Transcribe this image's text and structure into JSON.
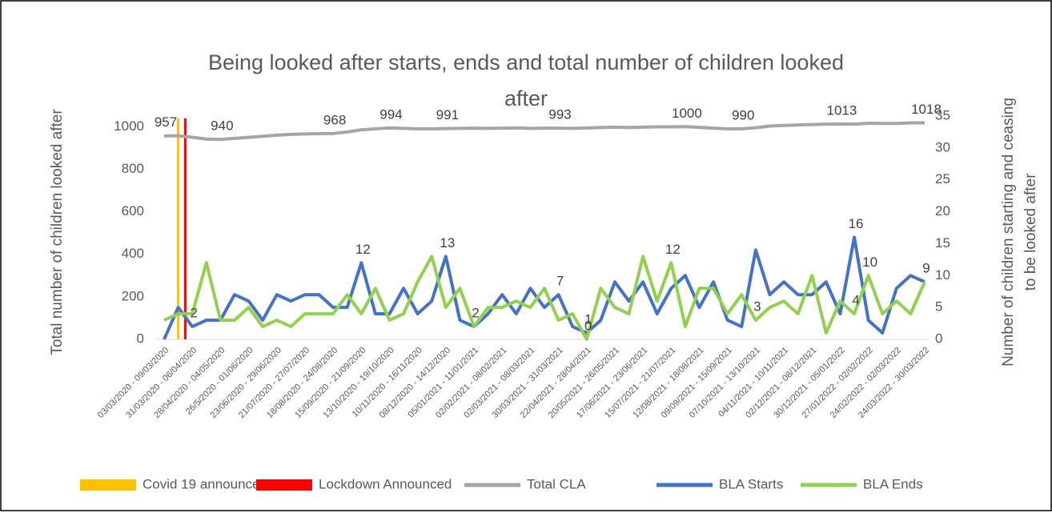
{
  "chart_data": {
    "type": "line",
    "title": "Being looked after starts, ends and total number of children looked after",
    "y_label": "Total number of children looked after",
    "y2_label": "Number of children starting and ceasing to be looked after",
    "categories": [
      "03/03/2020 - 09/03/2020",
      null,
      "31/03/2020 - 06/04/2020",
      null,
      "28/04/2020 - 04/05/2020",
      null,
      "26/5/2020 - 01/06/2020",
      null,
      "23/06/2020 - 29/06/2020",
      null,
      "21/07/2020 - 27/07/2020",
      null,
      "18/08/2020 - 24/08/2020",
      null,
      "15/09/2020 - 21/09/2020",
      null,
      "13/10/2020 - 19/10/2020",
      null,
      "10/11/2020 - 16/11/2020",
      null,
      "08/12/2020 - 14/12/2020",
      null,
      "05/01/2021 - 11/01/2021",
      null,
      "02/02/2021 - 08/02/2021",
      null,
      "02/03/2021 - 08/03/2021",
      null,
      "30/03/2021 - 31/03/2021",
      null,
      "22/04/2021 - 28/04/2021",
      null,
      "20/05/2021 - 26/05/2021",
      null,
      "17/06/2021 - 23/06/2021",
      null,
      "15/07/2021 - 21/07/2021",
      null,
      "12/08/2021 - 18/08/2021",
      null,
      "09/09/2021 - 15/09/2021",
      null,
      "07/10/2021 - 13/10/2021",
      null,
      "04/11/2021 - 10/11/2021",
      null,
      "02/12/2021 - 08/12/2021",
      null,
      "30/12/2021 - 05/01/2022",
      null,
      "27/01/2022 - 02/02/2022",
      null,
      "24/02/2022 - 02/03/2022",
      null,
      "24/03/2022 - 30/03/2022"
    ],
    "series": [
      {
        "name": "Total CLA",
        "color": "#a5a5a5",
        "axis": "y",
        "values": [
          957,
          957,
          950,
          942,
          940,
          945,
          950,
          955,
          960,
          964,
          966,
          967,
          968,
          975,
          985,
          990,
          994,
          992,
          990,
          990,
          991,
          992,
          993,
          992,
          993,
          994,
          992,
          993,
          993,
          992,
          994,
          996,
          998,
          996,
          998,
          999,
          999,
          1000,
          997,
          993,
          990,
          990,
          995,
          1003,
          1006,
          1008,
          1010,
          1012,
          1013,
          1012,
          1016,
          1015,
          1015,
          1018,
          1018
        ],
        "value_labels": [
          "957",
          null,
          null,
          null,
          "940",
          null,
          null,
          null,
          null,
          null,
          null,
          null,
          "968",
          null,
          null,
          null,
          "994",
          null,
          null,
          null,
          "991",
          null,
          null,
          null,
          null,
          null,
          null,
          null,
          "993",
          null,
          null,
          null,
          null,
          null,
          null,
          null,
          null,
          "1000",
          null,
          null,
          null,
          "990",
          null,
          null,
          null,
          null,
          null,
          null,
          "1013",
          null,
          null,
          null,
          null,
          null,
          "1018"
        ]
      },
      {
        "name": "BLA Starts",
        "color": "#4472c4",
        "axis": "y2",
        "values": [
          0,
          5,
          2,
          3,
          3,
          7,
          6,
          3,
          7,
          6,
          7,
          7,
          5,
          5,
          12,
          4,
          4,
          8,
          4,
          6,
          13,
          3,
          2,
          4,
          7,
          4,
          8,
          5,
          7,
          2,
          1,
          3,
          9,
          6,
          9,
          4,
          8,
          10,
          5,
          9,
          3,
          2,
          14,
          7,
          9,
          7,
          7,
          9,
          4,
          16,
          3,
          1,
          8,
          10,
          9
        ],
        "value_labels": [
          null,
          null,
          "2",
          null,
          null,
          null,
          null,
          null,
          null,
          null,
          null,
          null,
          null,
          null,
          "12",
          null,
          null,
          null,
          null,
          null,
          "13",
          null,
          null,
          null,
          null,
          null,
          null,
          null,
          "7",
          null,
          "1",
          null,
          null,
          null,
          null,
          null,
          null,
          null,
          null,
          null,
          null,
          null,
          null,
          null,
          null,
          null,
          null,
          null,
          null,
          "16",
          null,
          null,
          null,
          null,
          null
        ]
      },
      {
        "name": "BLA Ends",
        "color": "#92d050",
        "axis": "y2",
        "values": [
          3,
          4,
          4,
          12,
          3,
          3,
          5,
          2,
          3,
          2,
          4,
          4,
          4,
          7,
          4,
          8,
          3,
          4,
          9,
          13,
          5,
          8,
          2,
          5,
          5,
          6,
          5,
          8,
          3,
          4,
          0,
          8,
          5,
          4,
          13,
          6,
          12,
          2,
          8,
          8,
          4,
          7,
          3,
          5,
          6,
          4,
          10,
          1,
          6,
          4,
          10,
          4,
          6,
          4,
          9
        ],
        "value_labels": [
          null,
          null,
          null,
          null,
          null,
          null,
          null,
          null,
          null,
          null,
          null,
          null,
          null,
          null,
          null,
          null,
          null,
          null,
          null,
          null,
          null,
          null,
          "2",
          null,
          null,
          null,
          null,
          null,
          null,
          null,
          "0",
          null,
          null,
          null,
          null,
          null,
          "12",
          null,
          null,
          null,
          null,
          null,
          "3",
          null,
          null,
          null,
          null,
          null,
          null,
          "4",
          "10",
          null,
          null,
          null,
          "9"
        ]
      }
    ],
    "events": [
      {
        "name": "Covid 19 announcement",
        "color": "#ffc000",
        "position": 1
      },
      {
        "name": "Lockdown Announced",
        "color": "#ff0000",
        "position": 1.5
      }
    ],
    "ylim": [
      0,
      1050
    ],
    "yticks": [
      0,
      200,
      400,
      600,
      800,
      1000
    ],
    "y2lim": [
      0,
      35
    ],
    "y2ticks": [
      0,
      5,
      10,
      15,
      20,
      25,
      30,
      35
    ],
    "legend": "bottom"
  }
}
